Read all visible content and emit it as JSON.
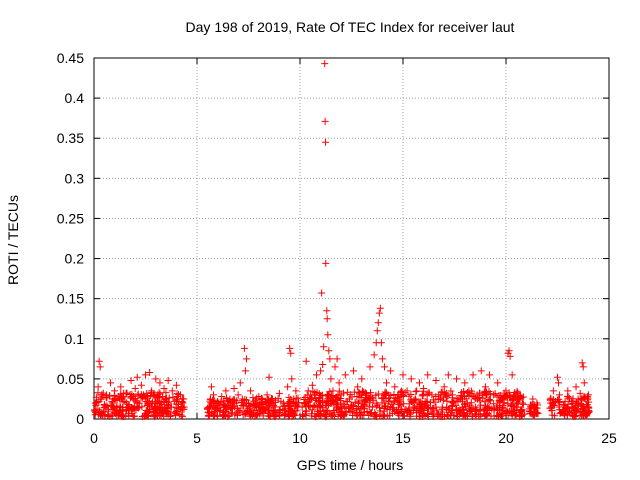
{
  "chart_data": {
    "type": "scatter",
    "title": "Day 198 of 2019, Rate Of TEC Index for receiver laut",
    "xlabel": "GPS time / hours",
    "ylabel": "ROTI / TECUs",
    "xlim": [
      0,
      25
    ],
    "ylim": [
      0,
      0.45
    ],
    "x_ticks": [
      0,
      5,
      10,
      15,
      20,
      25
    ],
    "y_ticks": [
      0,
      0.05,
      0.1,
      0.15,
      0.2,
      0.25,
      0.3,
      0.35,
      0.4,
      0.45
    ],
    "x_tick_labels": [
      "0",
      "5",
      "10",
      "15",
      "20",
      "25"
    ],
    "y_tick_labels": [
      "0",
      "0.05",
      "0.1",
      "0.15",
      "0.2",
      "0.25",
      "0.3",
      "0.35",
      "0.4",
      "0.45"
    ],
    "grid": true,
    "marker": "+",
    "color": "#ff0000",
    "series": [
      {
        "name": "ROTI",
        "points": [
          [
            0.1,
            0.01
          ],
          [
            0.2,
            0.04
          ],
          [
            0.25,
            0.072
          ],
          [
            0.3,
            0.065
          ],
          [
            0.35,
            0.025
          ],
          [
            0.5,
            0.018
          ],
          [
            0.6,
            0.03
          ],
          [
            0.7,
            0.012
          ],
          [
            0.8,
            0.045
          ],
          [
            0.9,
            0.02
          ],
          [
            1.0,
            0.035
          ],
          [
            1.1,
            0.015
          ],
          [
            1.2,
            0.028
          ],
          [
            1.3,
            0.04
          ],
          [
            1.4,
            0.01
          ],
          [
            1.5,
            0.022
          ],
          [
            1.6,
            0.032
          ],
          [
            1.7,
            0.018
          ],
          [
            1.8,
            0.048
          ],
          [
            1.9,
            0.025
          ],
          [
            2.0,
            0.038
          ],
          [
            2.1,
            0.052
          ],
          [
            2.2,
            0.015
          ],
          [
            2.3,
            0.042
          ],
          [
            2.4,
            0.03
          ],
          [
            2.5,
            0.055
          ],
          [
            2.6,
            0.02
          ],
          [
            2.7,
            0.058
          ],
          [
            2.8,
            0.035
          ],
          [
            2.9,
            0.012
          ],
          [
            3.0,
            0.05
          ],
          [
            3.1,
            0.028
          ],
          [
            3.2,
            0.045
          ],
          [
            3.3,
            0.018
          ],
          [
            3.4,
            0.038
          ],
          [
            3.5,
            0.025
          ],
          [
            3.6,
            0.048
          ],
          [
            3.7,
            0.015
          ],
          [
            3.8,
            0.035
          ],
          [
            3.9,
            0.022
          ],
          [
            4.0,
            0.042
          ],
          [
            4.1,
            0.018
          ],
          [
            4.2,
            0.03
          ],
          [
            4.3,
            0.012
          ],
          [
            4.35,
            0.025
          ],
          [
            5.6,
            0.015
          ],
          [
            5.7,
            0.04
          ],
          [
            5.8,
            0.03
          ],
          [
            5.9,
            0.012
          ],
          [
            6.0,
            0.022
          ],
          [
            6.1,
            0.01
          ],
          [
            6.2,
            0.028
          ],
          [
            6.3,
            0.018
          ],
          [
            6.4,
            0.035
          ],
          [
            6.5,
            0.012
          ],
          [
            6.6,
            0.025
          ],
          [
            6.7,
            0.015
          ],
          [
            6.8,
            0.038
          ],
          [
            6.9,
            0.02
          ],
          [
            7.0,
            0.03
          ],
          [
            7.1,
            0.045
          ],
          [
            7.2,
            0.025
          ],
          [
            7.3,
            0.088
          ],
          [
            7.35,
            0.06
          ],
          [
            7.4,
            0.075
          ],
          [
            7.5,
            0.02
          ],
          [
            7.6,
            0.035
          ],
          [
            7.8,
            0.015
          ],
          [
            8.0,
            0.028
          ],
          [
            8.2,
            0.018
          ],
          [
            8.4,
            0.03
          ],
          [
            8.5,
            0.052
          ],
          [
            8.6,
            0.022
          ],
          [
            8.8,
            0.015
          ],
          [
            9.0,
            0.032
          ],
          [
            9.2,
            0.02
          ],
          [
            9.4,
            0.04
          ],
          [
            9.5,
            0.088
          ],
          [
            9.55,
            0.082
          ],
          [
            9.6,
            0.05
          ],
          [
            9.7,
            0.025
          ],
          [
            9.8,
            0.035
          ],
          [
            9.9,
            0.015
          ],
          [
            10.2,
            0.02
          ],
          [
            10.3,
            0.072
          ],
          [
            10.4,
            0.035
          ],
          [
            10.5,
            0.015
          ],
          [
            10.6,
            0.042
          ],
          [
            10.7,
            0.03
          ],
          [
            10.8,
            0.055
          ],
          [
            10.9,
            0.022
          ],
          [
            11.0,
            0.06
          ],
          [
            11.05,
            0.157
          ],
          [
            11.1,
            0.068
          ],
          [
            11.15,
            0.09
          ],
          [
            11.2,
            0.443
          ],
          [
            11.22,
            0.371
          ],
          [
            11.24,
            0.345
          ],
          [
            11.25,
            0.194
          ],
          [
            11.3,
            0.135
          ],
          [
            11.32,
            0.125
          ],
          [
            11.35,
            0.105
          ],
          [
            11.4,
            0.085
          ],
          [
            11.45,
            0.075
          ],
          [
            11.5,
            0.05
          ],
          [
            11.6,
            0.035
          ],
          [
            11.7,
            0.065
          ],
          [
            11.8,
            0.075
          ],
          [
            11.9,
            0.045
          ],
          [
            12.0,
            0.03
          ],
          [
            12.2,
            0.055
          ],
          [
            12.4,
            0.025
          ],
          [
            12.6,
            0.06
          ],
          [
            12.8,
            0.04
          ],
          [
            13.0,
            0.05
          ],
          [
            13.2,
            0.03
          ],
          [
            13.4,
            0.065
          ],
          [
            13.6,
            0.08
          ],
          [
            13.7,
            0.095
          ],
          [
            13.75,
            0.11
          ],
          [
            13.8,
            0.12
          ],
          [
            13.85,
            0.132
          ],
          [
            13.9,
            0.138
          ],
          [
            13.95,
            0.095
          ],
          [
            14.0,
            0.075
          ],
          [
            14.1,
            0.065
          ],
          [
            14.2,
            0.045
          ],
          [
            14.4,
            0.06
          ],
          [
            14.6,
            0.04
          ],
          [
            14.8,
            0.03
          ],
          [
            15.0,
            0.055
          ],
          [
            15.2,
            0.035
          ],
          [
            15.4,
            0.05
          ],
          [
            15.6,
            0.025
          ],
          [
            15.8,
            0.045
          ],
          [
            16.0,
            0.038
          ],
          [
            16.2,
            0.055
          ],
          [
            16.4,
            0.03
          ],
          [
            16.6,
            0.048
          ],
          [
            16.8,
            0.025
          ],
          [
            17.0,
            0.04
          ],
          [
            17.2,
            0.055
          ],
          [
            17.4,
            0.03
          ],
          [
            17.6,
            0.05
          ],
          [
            17.8,
            0.025
          ],
          [
            18.0,
            0.045
          ],
          [
            18.2,
            0.035
          ],
          [
            18.4,
            0.055
          ],
          [
            18.6,
            0.03
          ],
          [
            18.8,
            0.06
          ],
          [
            19.0,
            0.04
          ],
          [
            19.2,
            0.055
          ],
          [
            19.4,
            0.03
          ],
          [
            19.6,
            0.045
          ],
          [
            19.8,
            0.025
          ],
          [
            20.0,
            0.035
          ],
          [
            20.1,
            0.082
          ],
          [
            20.15,
            0.085
          ],
          [
            20.2,
            0.078
          ],
          [
            20.3,
            0.055
          ],
          [
            20.4,
            0.03
          ],
          [
            20.5,
            0.015
          ],
          [
            20.6,
            0.025
          ],
          [
            20.7,
            0.01
          ],
          [
            20.8,
            0.02
          ],
          [
            21.2,
            0.015
          ],
          [
            21.3,
            0.025
          ],
          [
            21.4,
            0.01
          ],
          [
            21.5,
            0.02
          ],
          [
            22.2,
            0.015
          ],
          [
            22.3,
            0.035
          ],
          [
            22.4,
            0.022
          ],
          [
            22.5,
            0.052
          ],
          [
            22.55,
            0.045
          ],
          [
            22.6,
            0.03
          ],
          [
            22.8,
            0.018
          ],
          [
            23.0,
            0.035
          ],
          [
            23.2,
            0.015
          ],
          [
            23.4,
            0.04
          ],
          [
            23.5,
            0.025
          ],
          [
            23.6,
            0.032
          ],
          [
            23.7,
            0.07
          ],
          [
            23.75,
            0.065
          ],
          [
            23.8,
            0.045
          ],
          [
            23.9,
            0.018
          ],
          [
            24.0,
            0.03
          ]
        ]
      }
    ],
    "dense_bands": [
      {
        "x_from": 0.0,
        "x_to": 4.4,
        "y_max": 0.03
      },
      {
        "x_from": 5.5,
        "x_to": 9.95,
        "y_max": 0.024
      },
      {
        "x_from": 10.1,
        "x_to": 20.9,
        "y_max": 0.032
      },
      {
        "x_from": 21.1,
        "x_to": 21.6,
        "y_max": 0.015
      },
      {
        "x_from": 22.1,
        "x_to": 24.05,
        "y_max": 0.026
      }
    ]
  }
}
